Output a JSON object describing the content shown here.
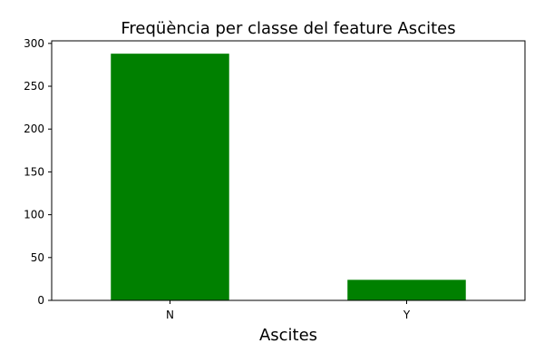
{
  "chart_data": {
    "type": "bar",
    "title": "Freqüència per classe del feature Ascites",
    "xlabel": "Ascites",
    "ylabel": "",
    "categories": [
      "N",
      "Y"
    ],
    "values": [
      288,
      24
    ],
    "ylim": [
      0,
      303
    ],
    "yticks": [
      0,
      50,
      100,
      150,
      200,
      250,
      300
    ],
    "bar_color": "#008000",
    "grid": false,
    "legend": "none"
  }
}
